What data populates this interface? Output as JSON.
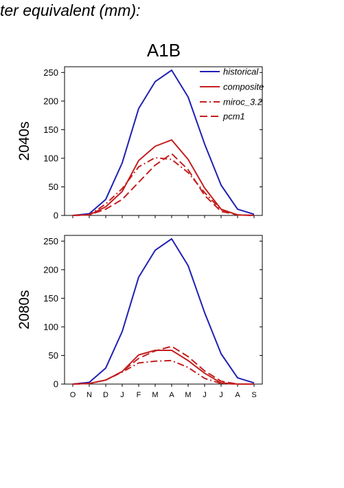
{
  "header": {
    "caption": "ter equivalent (mm):",
    "scenario": "A1B"
  },
  "colors": {
    "historical": "#1f1fb4",
    "projection": "#c41e1e"
  },
  "chart_data": [
    {
      "type": "line",
      "row_label": "2040s",
      "categories": [
        "O",
        "N",
        "D",
        "J",
        "F",
        "M",
        "A",
        "M",
        "J",
        "J",
        "A",
        "S"
      ],
      "ylim": [
        0,
        260
      ],
      "yticks": [
        0,
        50,
        100,
        150,
        200,
        250
      ],
      "legend_position": "top-right",
      "series": [
        {
          "name": "historical",
          "style": "solid",
          "color": "#1f1fb4",
          "values": [
            0,
            3,
            28,
            92,
            187,
            234,
            254,
            207,
            125,
            53,
            11,
            2
          ]
        },
        {
          "name": "composite",
          "style": "solid",
          "color": "#c41e1e",
          "values": [
            0,
            1,
            15,
            42,
            96,
            121,
            132,
            98,
            48,
            11,
            1,
            0
          ]
        },
        {
          "name": "miroc_3.2",
          "style": "dashdot",
          "color": "#c41e1e",
          "values": [
            0,
            1,
            20,
            47,
            85,
            101,
            98,
            75,
            40,
            10,
            1,
            0
          ]
        },
        {
          "name": "pcm1",
          "style": "dashed",
          "color": "#c41e1e",
          "values": [
            0,
            1,
            11,
            28,
            58,
            88,
            108,
            80,
            35,
            7,
            1,
            0
          ]
        }
      ]
    },
    {
      "type": "line",
      "row_label": "2080s",
      "categories": [
        "O",
        "N",
        "D",
        "J",
        "F",
        "M",
        "A",
        "M",
        "J",
        "J",
        "A",
        "S"
      ],
      "ylim": [
        0,
        260
      ],
      "yticks": [
        0,
        50,
        100,
        150,
        200,
        250
      ],
      "series": [
        {
          "name": "historical",
          "style": "solid",
          "color": "#1f1fb4",
          "values": [
            0,
            3,
            28,
            92,
            187,
            234,
            254,
            207,
            125,
            53,
            11,
            2
          ]
        },
        {
          "name": "composite",
          "style": "solid",
          "color": "#c41e1e",
          "values": [
            0,
            1,
            7,
            22,
            51,
            59,
            59,
            41,
            19,
            2,
            0,
            0
          ]
        },
        {
          "name": "miroc_3.2",
          "style": "dashdot",
          "color": "#c41e1e",
          "values": [
            0,
            1,
            7,
            21,
            37,
            40,
            41,
            29,
            10,
            1,
            0,
            0
          ]
        },
        {
          "name": "pcm1",
          "style": "dashed",
          "color": "#c41e1e",
          "values": [
            0,
            1,
            7,
            22,
            45,
            58,
            66,
            48,
            23,
            5,
            0,
            0
          ]
        }
      ]
    }
  ]
}
